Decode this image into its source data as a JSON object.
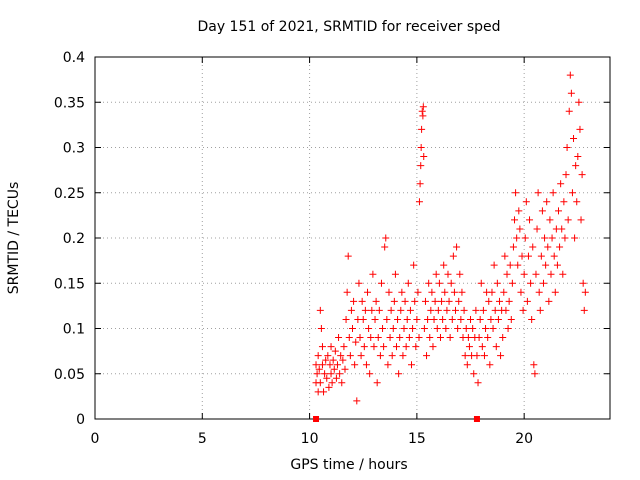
{
  "chart_data": {
    "type": "scatter",
    "title": "Day 151 of 2021, SRMTID for receiver sped",
    "xlabel": "GPS time / hours",
    "ylabel": "SRMTID / TECUs",
    "xlim": [
      0,
      24.0
    ],
    "ylim": [
      0,
      0.4
    ],
    "x_ticks": [
      0,
      5,
      10,
      15,
      20
    ],
    "x_tick_labels": [
      "0",
      "5",
      "10",
      "15",
      "20"
    ],
    "y_ticks": [
      0,
      0.05,
      0.1,
      0.15,
      0.2,
      0.25,
      0.3,
      0.35,
      0.4
    ],
    "y_tick_labels": [
      "0",
      "0.05",
      "0.1",
      "0.15",
      "0.2",
      "0.25",
      "0.3",
      "0.35",
      "0.4"
    ],
    "grid": true,
    "marker": "+",
    "color": "#ff0000",
    "gap_markers": [
      {
        "x": 10.3,
        "y": 0
      },
      {
        "x": 17.8,
        "y": 0
      }
    ],
    "series": [
      {
        "name": "SRMTID",
        "points": [
          [
            10.3,
            0.04
          ],
          [
            10.3,
            0.06
          ],
          [
            10.35,
            0.05
          ],
          [
            10.4,
            0.03
          ],
          [
            10.4,
            0.07
          ],
          [
            10.45,
            0.055
          ],
          [
            10.5,
            0.04
          ],
          [
            10.5,
            0.12
          ],
          [
            10.55,
            0.1
          ],
          [
            10.6,
            0.06
          ],
          [
            10.6,
            0.08
          ],
          [
            10.65,
            0.03
          ],
          [
            10.7,
            0.05
          ],
          [
            10.75,
            0.065
          ],
          [
            10.8,
            0.045
          ],
          [
            10.85,
            0.07
          ],
          [
            10.9,
            0.035
          ],
          [
            10.95,
            0.06
          ],
          [
            11.0,
            0.05
          ],
          [
            11.0,
            0.08
          ],
          [
            11.05,
            0.04
          ],
          [
            11.1,
            0.065
          ],
          [
            11.15,
            0.055
          ],
          [
            11.2,
            0.075
          ],
          [
            11.25,
            0.045
          ],
          [
            11.3,
            0.06
          ],
          [
            11.35,
            0.09
          ],
          [
            11.4,
            0.05
          ],
          [
            11.45,
            0.07
          ],
          [
            11.5,
            0.04
          ],
          [
            11.55,
            0.065
          ],
          [
            11.6,
            0.08
          ],
          [
            11.65,
            0.055
          ],
          [
            11.7,
            0.11
          ],
          [
            11.75,
            0.14
          ],
          [
            11.8,
            0.18
          ],
          [
            11.85,
            0.09
          ],
          [
            11.9,
            0.07
          ],
          [
            11.95,
            0.12
          ],
          [
            12.0,
            0.1
          ],
          [
            12.05,
            0.13
          ],
          [
            12.1,
            0.06
          ],
          [
            12.15,
            0.085
          ],
          [
            12.2,
            0.02
          ],
          [
            12.25,
            0.11
          ],
          [
            12.3,
            0.15
          ],
          [
            12.35,
            0.09
          ],
          [
            12.4,
            0.07
          ],
          [
            12.45,
            0.13
          ],
          [
            12.5,
            0.11
          ],
          [
            12.55,
            0.08
          ],
          [
            12.6,
            0.12
          ],
          [
            12.65,
            0.06
          ],
          [
            12.7,
            0.14
          ],
          [
            12.75,
            0.1
          ],
          [
            12.8,
            0.05
          ],
          [
            12.85,
            0.09
          ],
          [
            12.9,
            0.12
          ],
          [
            12.95,
            0.16
          ],
          [
            13.0,
            0.08
          ],
          [
            13.05,
            0.11
          ],
          [
            13.1,
            0.13
          ],
          [
            13.15,
            0.04
          ],
          [
            13.2,
            0.09
          ],
          [
            13.25,
            0.12
          ],
          [
            13.3,
            0.07
          ],
          [
            13.35,
            0.15
          ],
          [
            13.4,
            0.1
          ],
          [
            13.45,
            0.08
          ],
          [
            13.5,
            0.19
          ],
          [
            13.55,
            0.2
          ],
          [
            13.6,
            0.11
          ],
          [
            13.65,
            0.06
          ],
          [
            13.7,
            0.14
          ],
          [
            13.75,
            0.09
          ],
          [
            13.8,
            0.12
          ],
          [
            13.85,
            0.07
          ],
          [
            13.9,
            0.1
          ],
          [
            13.95,
            0.13
          ],
          [
            14.0,
            0.16
          ],
          [
            14.05,
            0.08
          ],
          [
            14.1,
            0.11
          ],
          [
            14.15,
            0.05
          ],
          [
            14.2,
            0.09
          ],
          [
            14.25,
            0.12
          ],
          [
            14.3,
            0.14
          ],
          [
            14.35,
            0.07
          ],
          [
            14.4,
            0.1
          ],
          [
            14.45,
            0.13
          ],
          [
            14.5,
            0.08
          ],
          [
            14.55,
            0.11
          ],
          [
            14.6,
            0.15
          ],
          [
            14.65,
            0.09
          ],
          [
            14.7,
            0.12
          ],
          [
            14.75,
            0.06
          ],
          [
            14.8,
            0.1
          ],
          [
            14.85,
            0.17
          ],
          [
            14.9,
            0.13
          ],
          [
            14.95,
            0.08
          ],
          [
            15.0,
            0.11
          ],
          [
            15.05,
            0.14
          ],
          [
            15.1,
            0.09
          ],
          [
            15.12,
            0.24
          ],
          [
            15.15,
            0.26
          ],
          [
            15.18,
            0.28
          ],
          [
            15.2,
            0.3
          ],
          [
            15.22,
            0.32
          ],
          [
            15.25,
            0.34
          ],
          [
            15.28,
            0.335
          ],
          [
            15.3,
            0.345
          ],
          [
            15.32,
            0.29
          ],
          [
            15.35,
            0.1
          ],
          [
            15.4,
            0.13
          ],
          [
            15.45,
            0.07
          ],
          [
            15.5,
            0.11
          ],
          [
            15.55,
            0.15
          ],
          [
            15.6,
            0.09
          ],
          [
            15.65,
            0.12
          ],
          [
            15.7,
            0.14
          ],
          [
            15.75,
            0.08
          ],
          [
            15.8,
            0.11
          ],
          [
            15.85,
            0.13
          ],
          [
            15.9,
            0.16
          ],
          [
            15.95,
            0.1
          ],
          [
            16.0,
            0.12
          ],
          [
            16.05,
            0.15
          ],
          [
            16.1,
            0.09
          ],
          [
            16.15,
            0.13
          ],
          [
            16.2,
            0.11
          ],
          [
            16.25,
            0.17
          ],
          [
            16.3,
            0.14
          ],
          [
            16.35,
            0.1
          ],
          [
            16.4,
            0.12
          ],
          [
            16.45,
            0.16
          ],
          [
            16.5,
            0.13
          ],
          [
            16.55,
            0.09
          ],
          [
            16.6,
            0.15
          ],
          [
            16.65,
            0.11
          ],
          [
            16.7,
            0.18
          ],
          [
            16.75,
            0.14
          ],
          [
            16.8,
            0.12
          ],
          [
            16.85,
            0.19
          ],
          [
            16.9,
            0.1
          ],
          [
            16.95,
            0.13
          ],
          [
            17.0,
            0.16
          ],
          [
            17.05,
            0.11
          ],
          [
            17.1,
            0.14
          ],
          [
            17.15,
            0.09
          ],
          [
            17.2,
            0.12
          ],
          [
            17.25,
            0.07
          ],
          [
            17.3,
            0.1
          ],
          [
            17.35,
            0.06
          ],
          [
            17.4,
            0.09
          ],
          [
            17.45,
            0.08
          ],
          [
            17.5,
            0.11
          ],
          [
            17.55,
            0.07
          ],
          [
            17.6,
            0.1
          ],
          [
            17.65,
            0.05
          ],
          [
            17.7,
            0.09
          ],
          [
            17.75,
            0.12
          ],
          [
            17.8,
            0.07
          ],
          [
            17.85,
            0.04
          ],
          [
            17.9,
            0.09
          ],
          [
            17.95,
            0.11
          ],
          [
            18.0,
            0.15
          ],
          [
            18.05,
            0.08
          ],
          [
            18.1,
            0.12
          ],
          [
            18.15,
            0.07
          ],
          [
            18.2,
            0.1
          ],
          [
            18.25,
            0.14
          ],
          [
            18.3,
            0.09
          ],
          [
            18.35,
            0.13
          ],
          [
            18.4,
            0.06
          ],
          [
            18.45,
            0.11
          ],
          [
            18.5,
            0.14
          ],
          [
            18.55,
            0.1
          ],
          [
            18.6,
            0.17
          ],
          [
            18.65,
            0.12
          ],
          [
            18.7,
            0.08
          ],
          [
            18.75,
            0.15
          ],
          [
            18.8,
            0.11
          ],
          [
            18.85,
            0.13
          ],
          [
            18.9,
            0.07
          ],
          [
            18.95,
            0.12
          ],
          [
            19.0,
            0.09
          ],
          [
            19.05,
            0.14
          ],
          [
            19.1,
            0.18
          ],
          [
            19.15,
            0.12
          ],
          [
            19.2,
            0.16
          ],
          [
            19.25,
            0.1
          ],
          [
            19.3,
            0.13
          ],
          [
            19.35,
            0.17
          ],
          [
            19.4,
            0.11
          ],
          [
            19.45,
            0.15
          ],
          [
            19.5,
            0.19
          ],
          [
            19.55,
            0.22
          ],
          [
            19.6,
            0.25
          ],
          [
            19.65,
            0.2
          ],
          [
            19.7,
            0.17
          ],
          [
            19.75,
            0.23
          ],
          [
            19.8,
            0.21
          ],
          [
            19.85,
            0.14
          ],
          [
            19.9,
            0.18
          ],
          [
            19.95,
            0.12
          ],
          [
            20.0,
            0.16
          ],
          [
            20.05,
            0.2
          ],
          [
            20.1,
            0.24
          ],
          [
            20.15,
            0.13
          ],
          [
            20.2,
            0.18
          ],
          [
            20.25,
            0.22
          ],
          [
            20.3,
            0.15
          ],
          [
            20.35,
            0.11
          ],
          [
            20.4,
            0.19
          ],
          [
            20.45,
            0.06
          ],
          [
            20.5,
            0.05
          ],
          [
            20.55,
            0.16
          ],
          [
            20.6,
            0.21
          ],
          [
            20.65,
            0.25
          ],
          [
            20.7,
            0.14
          ],
          [
            20.75,
            0.12
          ],
          [
            20.8,
            0.18
          ],
          [
            20.85,
            0.23
          ],
          [
            20.9,
            0.15
          ],
          [
            20.95,
            0.2
          ],
          [
            21.0,
            0.17
          ],
          [
            21.05,
            0.24
          ],
          [
            21.1,
            0.19
          ],
          [
            21.15,
            0.13
          ],
          [
            21.2,
            0.22
          ],
          [
            21.25,
            0.16
          ],
          [
            21.3,
            0.2
          ],
          [
            21.35,
            0.25
          ],
          [
            21.4,
            0.18
          ],
          [
            21.45,
            0.14
          ],
          [
            21.5,
            0.21
          ],
          [
            21.55,
            0.17
          ],
          [
            21.6,
            0.23
          ],
          [
            21.65,
            0.19
          ],
          [
            21.7,
            0.26
          ],
          [
            21.75,
            0.21
          ],
          [
            21.8,
            0.16
          ],
          [
            21.85,
            0.24
          ],
          [
            21.9,
            0.2
          ],
          [
            21.95,
            0.27
          ],
          [
            22.0,
            0.3
          ],
          [
            22.05,
            0.22
          ],
          [
            22.1,
            0.34
          ],
          [
            22.15,
            0.38
          ],
          [
            22.2,
            0.36
          ],
          [
            22.25,
            0.25
          ],
          [
            22.3,
            0.31
          ],
          [
            22.35,
            0.2
          ],
          [
            22.4,
            0.28
          ],
          [
            22.45,
            0.24
          ],
          [
            22.5,
            0.29
          ],
          [
            22.55,
            0.35
          ],
          [
            22.6,
            0.32
          ],
          [
            22.65,
            0.22
          ],
          [
            22.7,
            0.27
          ],
          [
            22.75,
            0.15
          ],
          [
            22.8,
            0.12
          ],
          [
            22.85,
            0.14
          ]
        ]
      }
    ]
  }
}
